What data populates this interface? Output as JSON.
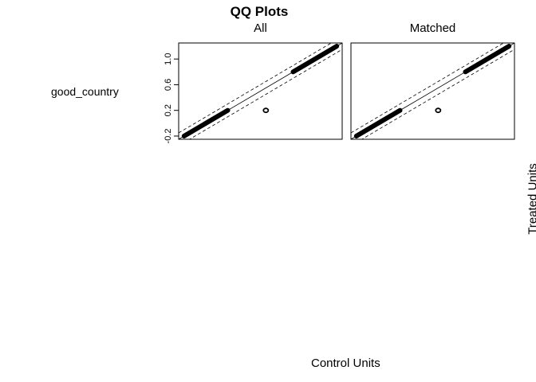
{
  "title": "QQ Plots",
  "row_label": "good_country",
  "x_axis_title": "Control Units",
  "y_axis_title": "Treated Units",
  "chart_data": [
    {
      "type": "scatter",
      "panel_title": "All",
      "xlim": [
        -0.25,
        1.25
      ],
      "ylim": [
        -0.25,
        1.25
      ],
      "y_ticks": [
        -0.2,
        0.2,
        0.6,
        1.0
      ],
      "y_tick_labels": [
        "-0.2",
        "0.2",
        "0.6",
        "1.0"
      ],
      "series": [
        {
          "values": [
            [
              -0.2,
              -0.2
            ],
            [
              0.2,
              0.2
            ]
          ]
        },
        {
          "values": [
            [
              0.8,
              0.8
            ],
            [
              1.2,
              1.2
            ]
          ]
        },
        {
          "values": [
            [
              0.55,
              0.2
            ]
          ]
        }
      ],
      "reference_line": [
        [
          -0.25,
          -0.25
        ],
        [
          1.25,
          1.25
        ]
      ],
      "band_offset": 0.1
    },
    {
      "type": "scatter",
      "panel_title": "Matched",
      "xlim": [
        -0.25,
        1.25
      ],
      "ylim": [
        -0.25,
        1.25
      ],
      "y_ticks": [],
      "y_tick_labels": [],
      "series": [
        {
          "values": [
            [
              -0.2,
              -0.2
            ],
            [
              0.2,
              0.2
            ]
          ]
        },
        {
          "values": [
            [
              0.8,
              0.8
            ],
            [
              1.2,
              1.2
            ]
          ]
        },
        {
          "values": [
            [
              0.55,
              0.2
            ]
          ]
        }
      ],
      "reference_line": [
        [
          -0.25,
          -0.25
        ],
        [
          1.25,
          1.25
        ]
      ],
      "band_offset": 0.1
    }
  ]
}
